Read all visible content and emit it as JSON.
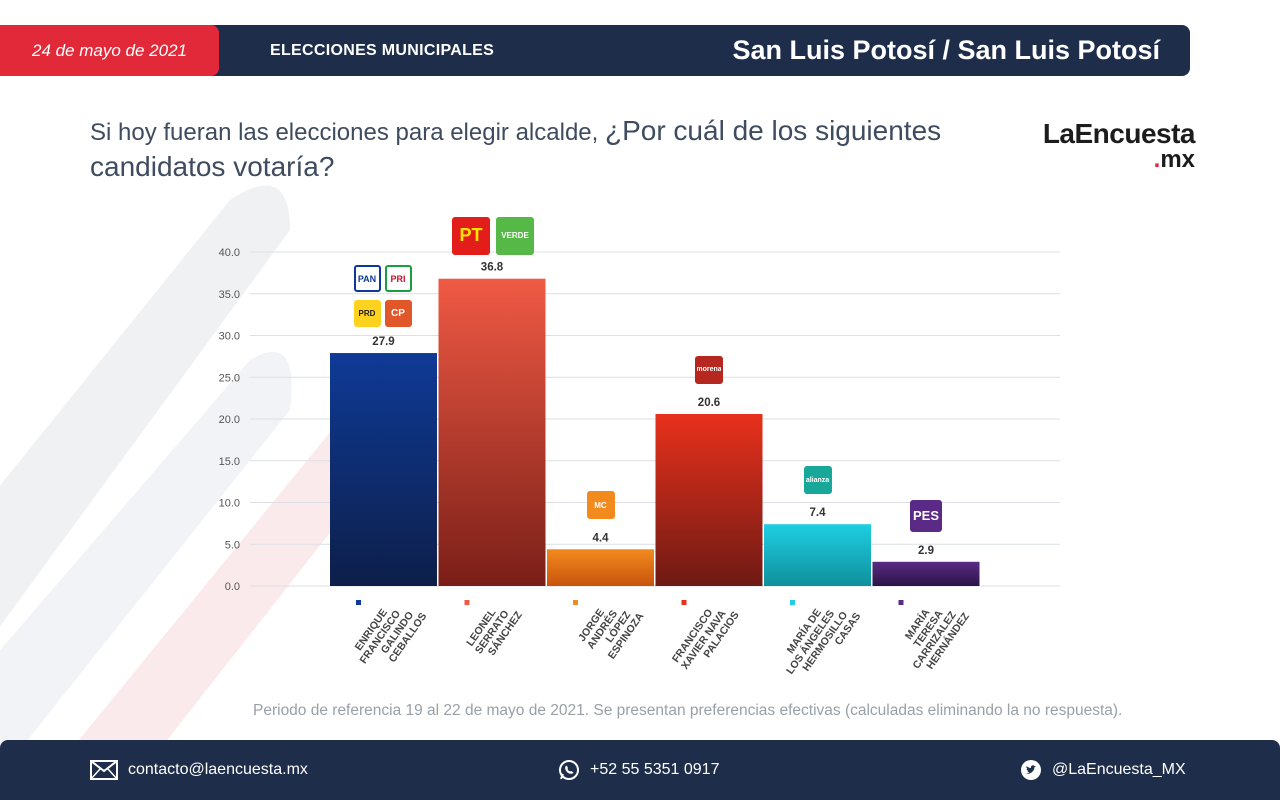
{
  "header": {
    "date": "24 de mayo de 2021",
    "section": "ELECCIONES MUNICIPALES",
    "location": "San Luis Potosí / San Luis Potosí"
  },
  "question": {
    "part1": "Si hoy fueran las elecciones para elegir alcalde, ",
    "part2": "¿Por cuál de los siguientes candidatos votaría?"
  },
  "logo": {
    "main": "LaEncuesta",
    "dot": ".",
    "sub": "mx"
  },
  "chart_data": {
    "type": "bar",
    "ylim": [
      0,
      40
    ],
    "yticks": [
      "0.0",
      "5.0",
      "10.0",
      "15.0",
      "20.0",
      "25.0",
      "30.0",
      "35.0",
      "40.0"
    ],
    "grid": true,
    "categories": [
      "ENRIQUE FRANCISCO GALINDO CEBALLOS",
      "LEONEL SERRATO SÁNCHEZ",
      "JORGE ANDRÉS LÓPEZ ESPINOZA",
      "FRANCISCO XAVIER NAVA PALACIOS",
      "MARÍA DE LOS ÁNGELES HERMOSILLO CASAS",
      "MARÍA TERESA CARRIZALEZ HERNÁNDEZ"
    ],
    "category_lines": [
      [
        "ENRIQUE",
        "FRANCISCO",
        "GALINDO",
        "CEBALLOS"
      ],
      [
        "LEONEL",
        "SERRATO",
        "SÁNCHEZ"
      ],
      [
        "JORGE",
        "ANDRÉS",
        "LÓPEZ",
        "ESPINOZA"
      ],
      [
        "FRANCISCO",
        "XAVIER NAVA",
        "PALACIOS"
      ],
      [
        "MARÍA DE",
        "LOS ÁNGELES",
        "HERMOSILLO",
        "CASAS"
      ],
      [
        "MARÍA",
        "TERESA",
        "CARRIZALEZ",
        "HERNÁNDEZ"
      ]
    ],
    "values": [
      27.9,
      36.8,
      4.4,
      20.6,
      7.4,
      2.9
    ],
    "value_labels": [
      "27.9",
      "36.8",
      "4.4",
      "20.6",
      "7.4",
      "2.9"
    ],
    "colors_top": [
      "#0f3a96",
      "#f05a44",
      "#f28a1e",
      "#e8311c",
      "#1ecfe3",
      "#5b2a86"
    ],
    "colors_bottom": [
      "#0d1f4a",
      "#7a1f18",
      "#c9540e",
      "#6e1a14",
      "#0f8f9c",
      "#2a1545"
    ],
    "party_logos": [
      [
        "PAN",
        "PRI",
        "PRD",
        "CP"
      ],
      [
        "PT",
        "VERDE"
      ],
      [
        "MC"
      ],
      [
        "morena"
      ],
      [
        "alianza"
      ],
      [
        "PES"
      ]
    ]
  },
  "footnote": "Periodo de referencia 19 al 22 de mayo de 2021. Se presentan preferencias efectivas (calculadas eliminando la no respuesta).",
  "footer": {
    "email": "contacto@laencuesta.mx",
    "phone": "+52 55 5351 0917",
    "twitter": "@LaEncuesta_MX"
  },
  "colors": {
    "navy": "#1e2d4a",
    "red": "#e2293a"
  }
}
